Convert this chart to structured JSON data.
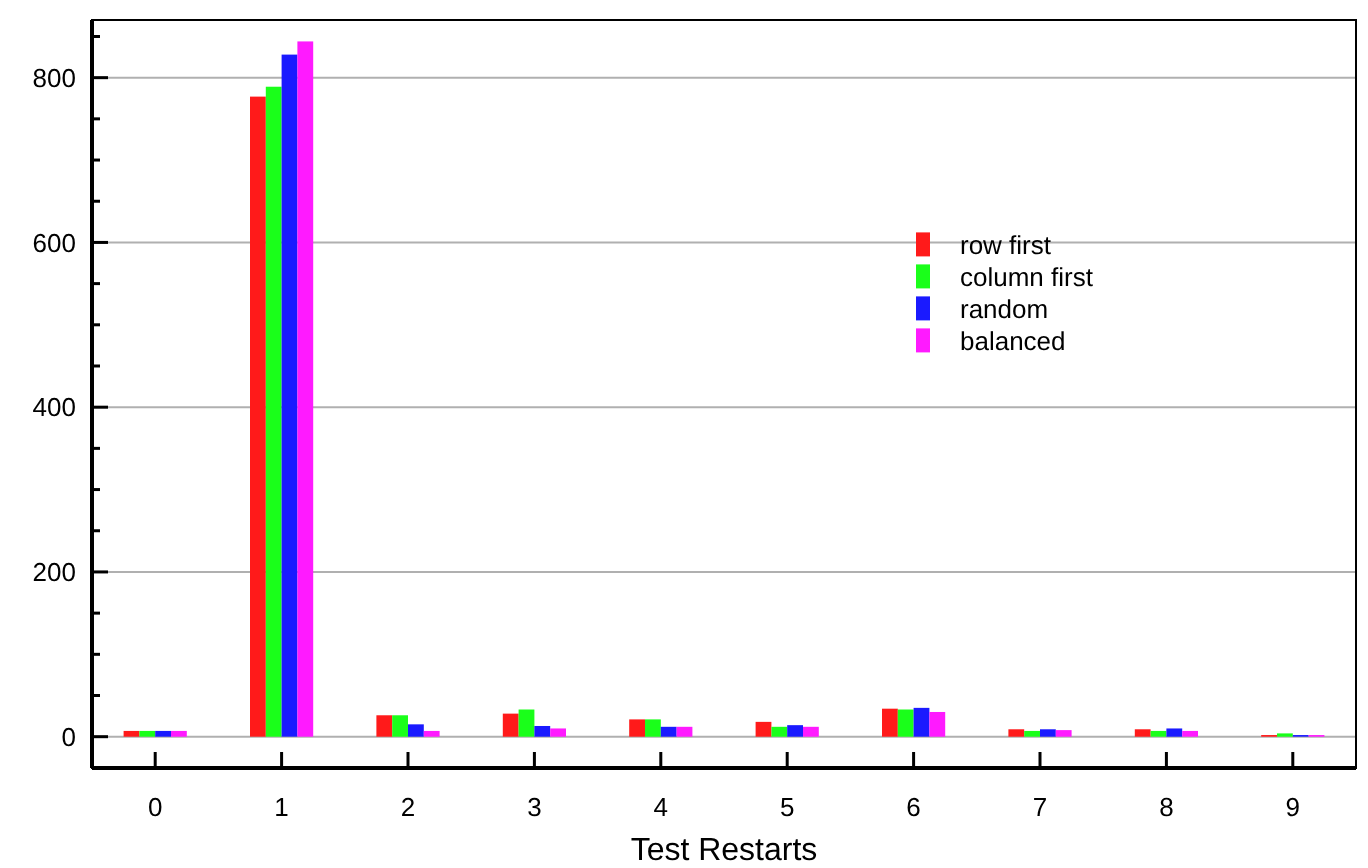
{
  "chart_data": {
    "type": "bar",
    "xlabel": "Test Restarts",
    "categories": [
      "0",
      "1",
      "2",
      "3",
      "4",
      "5",
      "6",
      "7",
      "8",
      "9"
    ],
    "series": [
      {
        "name": "row first",
        "color": "#ff1a1a",
        "values": [
          7,
          777,
          26,
          28,
          21,
          18,
          34,
          9,
          9,
          2
        ]
      },
      {
        "name": "column first",
        "color": "#1aff1a",
        "values": [
          7,
          789,
          26,
          33,
          21,
          12,
          33,
          7,
          7,
          4
        ]
      },
      {
        "name": "random",
        "color": "#1a1aff",
        "values": [
          7,
          828,
          15,
          13,
          12,
          14,
          35,
          9,
          10,
          2
        ]
      },
      {
        "name": "balanced",
        "color": "#ff1aff",
        "values": [
          7,
          844,
          7,
          10,
          12,
          12,
          30,
          8,
          7,
          2
        ]
      }
    ],
    "ylim": [
      -38,
      870
    ],
    "yticks": [
      0,
      {
        "value": 50,
        "label": null
      },
      {
        "value": 100,
        "label": null
      },
      {
        "value": 150,
        "label": null
      },
      200,
      {
        "value": 250,
        "label": null
      },
      {
        "value": 300,
        "label": null
      },
      {
        "value": 350,
        "label": null
      },
      400,
      {
        "value": 450,
        "label": null
      },
      {
        "value": 500,
        "label": null
      },
      {
        "value": 550,
        "label": null
      },
      600,
      {
        "value": 650,
        "label": null
      },
      {
        "value": 700,
        "label": null
      },
      {
        "value": 750,
        "label": null
      },
      800,
      {
        "value": 850,
        "label": null
      }
    ],
    "grid": "y",
    "legend": "right"
  }
}
